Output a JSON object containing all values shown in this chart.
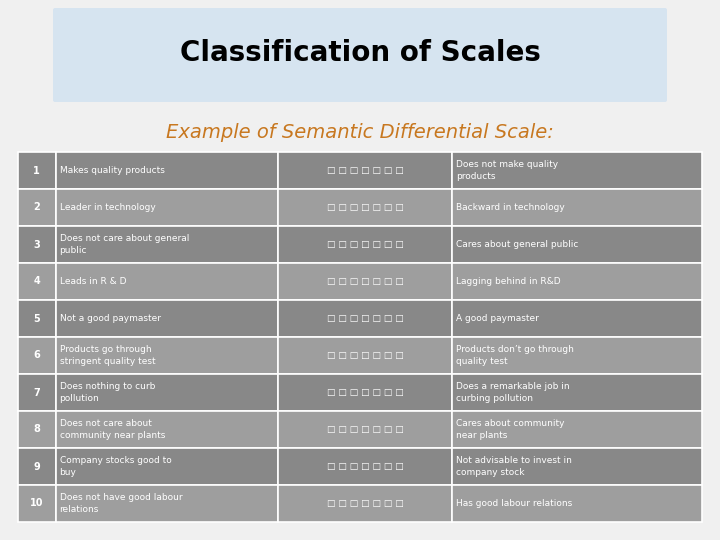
{
  "title": "Classification of Scales",
  "subtitle": "Example of Semantic Differential Scale:",
  "title_color": "#000000",
  "subtitle_color": "#c87820",
  "title_bg_color": "#d6e4f0",
  "bg_color": "#f0f0f0",
  "border_color": "#ffffff",
  "rows": [
    {
      "num": "1",
      "left": "Makes quality products",
      "right": "Does not make quality\nproducts"
    },
    {
      "num": "2",
      "left": "Leader in technology",
      "right": "Backward in technology"
    },
    {
      "num": "3",
      "left": "Does not care about general\npublic",
      "right": "Cares about general public"
    },
    {
      "num": "4",
      "left": "Leads in R & D",
      "right": "Lagging behind in R&D"
    },
    {
      "num": "5",
      "left": "Not a good paymaster",
      "right": "A good paymaster"
    },
    {
      "num": "6",
      "left": "Products go through\nstringent quality test",
      "right": "Products don’t go through\nquality test"
    },
    {
      "num": "7",
      "left": "Does nothing to curb\npollution",
      "right": "Does a remarkable job in\ncurbing pollution"
    },
    {
      "num": "8",
      "left": "Does not care about\ncommunity near plants",
      "right": "Cares about community\nnear plants"
    },
    {
      "num": "9",
      "left": "Company stocks good to\nbuy",
      "right": "Not advisable to invest in\ncompany stock"
    },
    {
      "num": "10",
      "left": "Does not have good labour\nrelations",
      "right": "Has good labour relations"
    }
  ],
  "checkboxes": "□ □ □ □ □ □ □",
  "row_colors": [
    "#888888",
    "#9e9e9e"
  ],
  "cell_text_color": "#ffffff",
  "title_fontsize": 20,
  "subtitle_fontsize": 14,
  "num_fontsize": 7,
  "cell_fontsize": 6.5
}
